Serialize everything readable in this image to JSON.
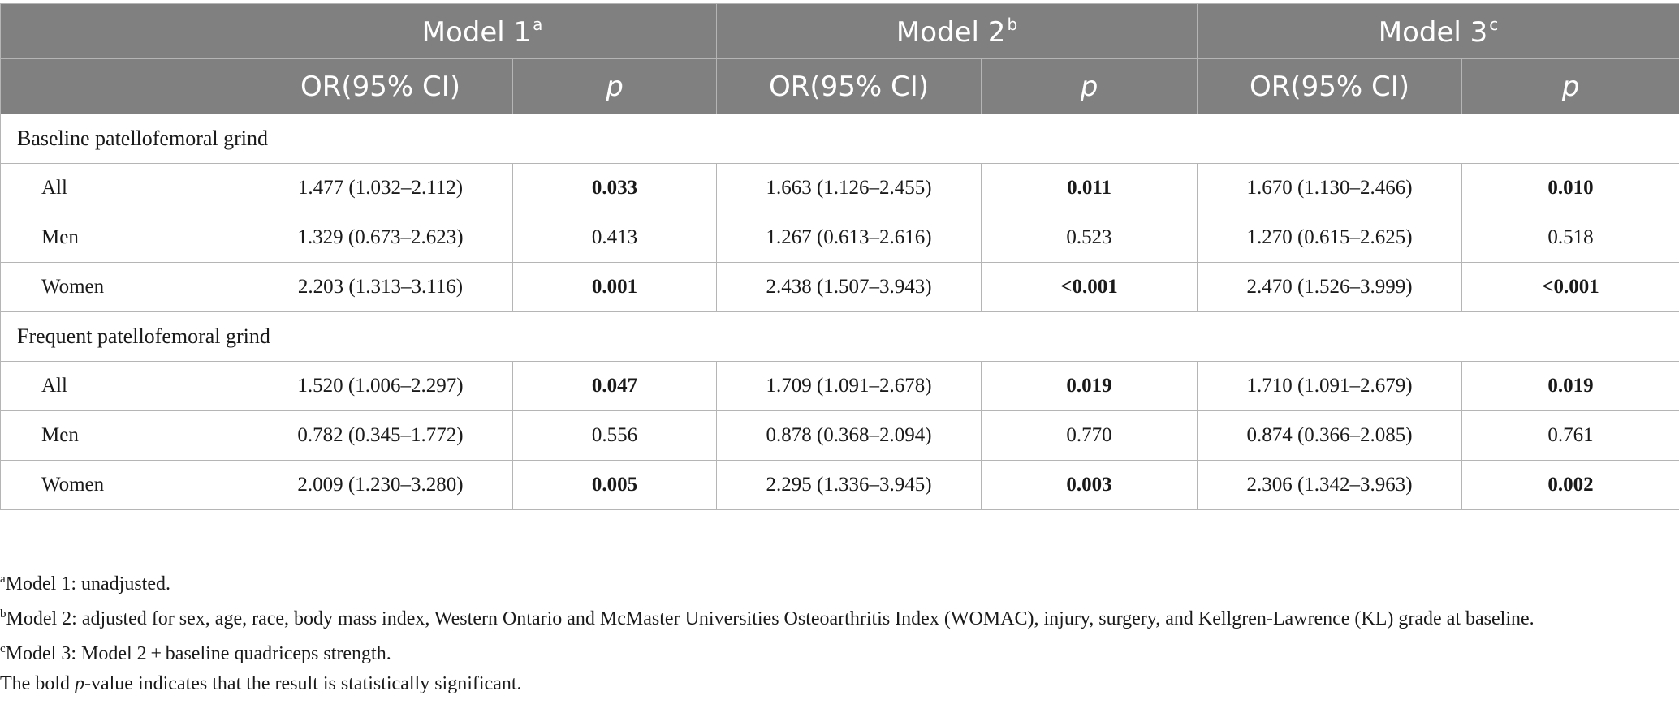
{
  "header": {
    "models": [
      {
        "label": "Model 1",
        "sup": "a"
      },
      {
        "label": "Model 2",
        "sup": "b"
      },
      {
        "label": "Model 3",
        "sup": "c"
      }
    ],
    "or_label": "OR(95% CI)",
    "p_label": "p"
  },
  "sections": [
    {
      "title": "Baseline patellofemoral grind",
      "rows": [
        {
          "label": "All",
          "cells": [
            {
              "or": "1.477 (1.032–2.112)",
              "p": "0.033",
              "sig": true
            },
            {
              "or": "1.663 (1.126–2.455)",
              "p": "0.011",
              "sig": true
            },
            {
              "or": "1.670 (1.130–2.466)",
              "p": "0.010",
              "sig": true
            }
          ]
        },
        {
          "label": "Men",
          "cells": [
            {
              "or": "1.329 (0.673–2.623)",
              "p": "0.413",
              "sig": false
            },
            {
              "or": "1.267 (0.613–2.616)",
              "p": "0.523",
              "sig": false
            },
            {
              "or": "1.270 (0.615–2.625)",
              "p": "0.518",
              "sig": false
            }
          ]
        },
        {
          "label": "Women",
          "cells": [
            {
              "or": "2.203 (1.313–3.116)",
              "p": "0.001",
              "sig": true
            },
            {
              "or": "2.438 (1.507–3.943)",
              "p": "<0.001",
              "sig": true
            },
            {
              "or": "2.470 (1.526–3.999)",
              "p": "<0.001",
              "sig": true
            }
          ]
        }
      ]
    },
    {
      "title": "Frequent patellofemoral grind",
      "rows": [
        {
          "label": "All",
          "cells": [
            {
              "or": "1.520 (1.006–2.297)",
              "p": "0.047",
              "sig": true
            },
            {
              "or": "1.709 (1.091–2.678)",
              "p": "0.019",
              "sig": true
            },
            {
              "or": "1.710 (1.091–2.679)",
              "p": "0.019",
              "sig": true
            }
          ]
        },
        {
          "label": "Men",
          "cells": [
            {
              "or": "0.782 (0.345–1.772)",
              "p": "0.556",
              "sig": false
            },
            {
              "or": "0.878 (0.368–2.094)",
              "p": "0.770",
              "sig": false
            },
            {
              "or": "0.874 (0.366–2.085)",
              "p": "0.761",
              "sig": false
            }
          ]
        },
        {
          "label": "Women",
          "cells": [
            {
              "or": "2.009 (1.230–3.280)",
              "p": "0.005",
              "sig": true
            },
            {
              "or": "2.295 (1.336–3.945)",
              "p": "0.003",
              "sig": true
            },
            {
              "or": "2.306 (1.342–3.963)",
              "p": "0.002",
              "sig": true
            }
          ]
        }
      ]
    }
  ],
  "footnotes": {
    "a": {
      "sup": "a",
      "text": "Model 1: unadjusted."
    },
    "b": {
      "sup": "b",
      "text": "Model 2: adjusted for sex, age, race, body mass index, Western Ontario and McMaster Universities Osteoarthritis Index (WOMAC), injury, surgery, and Kellgren-Lawrence (KL) grade at baseline."
    },
    "c": {
      "sup": "c",
      "text": "Model 3: Model 2 + baseline quadriceps strength."
    },
    "note": {
      "pre": "The bold ",
      "italic": "p",
      "post": "-value indicates that the result is statistically significant."
    }
  },
  "colors": {
    "header_bg": "#808080",
    "header_text": "#ffffff",
    "border": "#b5b5b5"
  }
}
